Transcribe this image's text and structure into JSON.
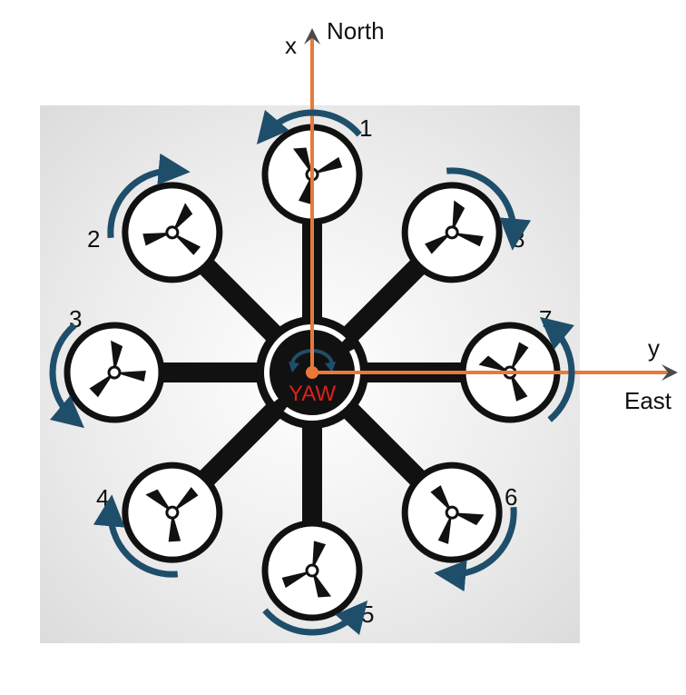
{
  "axes": {
    "x_label": "x",
    "x_direction": "North",
    "y_label": "y",
    "y_direction": "East",
    "color": "#e8793a"
  },
  "center_label": "YAW",
  "center_label_color": "#e0201b",
  "rotation_arrow_color": "#1f4e6b",
  "frame_color": "#111111",
  "background_panel_color": "#e3e3e3",
  "rotors": [
    {
      "number": "1",
      "icon": "propeller-icon"
    },
    {
      "number": "2",
      "icon": "propeller-icon"
    },
    {
      "number": "3",
      "icon": "propeller-icon"
    },
    {
      "number": "4",
      "icon": "propeller-icon"
    },
    {
      "number": "5",
      "icon": "propeller-icon"
    },
    {
      "number": "6",
      "icon": "propeller-icon"
    },
    {
      "number": "7",
      "icon": "propeller-icon"
    },
    {
      "number": "8",
      "icon": "propeller-icon"
    }
  ]
}
